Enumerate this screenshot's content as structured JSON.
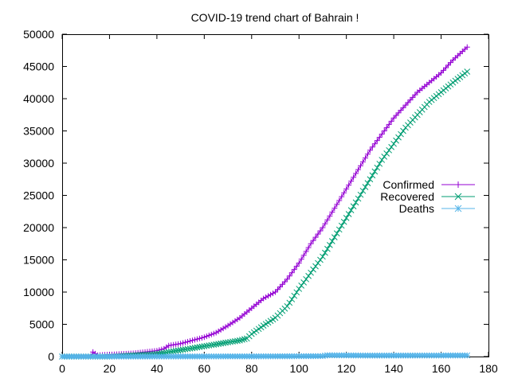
{
  "chart_data": {
    "type": "line",
    "title": "COVID-19 trend chart of Bahrain !",
    "xlabel": "",
    "ylabel": "",
    "xlim": [
      0,
      180
    ],
    "ylim": [
      0,
      50000
    ],
    "xticks": [
      0,
      20,
      40,
      60,
      80,
      100,
      120,
      140,
      160,
      180
    ],
    "yticks": [
      0,
      5000,
      10000,
      15000,
      20000,
      25000,
      30000,
      35000,
      40000,
      45000,
      50000
    ],
    "grid": false,
    "legend_position": "right",
    "x_start": 0,
    "x_end": 171,
    "series": [
      {
        "name": "Confirmed",
        "color": "#9400d3",
        "marker": "plus",
        "anchors": [
          [
            0,
            0
          ],
          [
            12,
            0
          ],
          [
            13,
            700
          ],
          [
            15,
            200
          ],
          [
            20,
            300
          ],
          [
            25,
            400
          ],
          [
            30,
            500
          ],
          [
            35,
            700
          ],
          [
            40,
            900
          ],
          [
            43,
            1200
          ],
          [
            45,
            1700
          ],
          [
            50,
            2000
          ],
          [
            55,
            2500
          ],
          [
            60,
            3000
          ],
          [
            65,
            3700
          ],
          [
            70,
            4800
          ],
          [
            75,
            6000
          ],
          [
            80,
            7500
          ],
          [
            85,
            9000
          ],
          [
            90,
            10000
          ],
          [
            95,
            12000
          ],
          [
            100,
            14500
          ],
          [
            105,
            17500
          ],
          [
            110,
            20000
          ],
          [
            115,
            23000
          ],
          [
            120,
            26000
          ],
          [
            125,
            29000
          ],
          [
            130,
            32000
          ],
          [
            135,
            34500
          ],
          [
            140,
            37000
          ],
          [
            145,
            39000
          ],
          [
            150,
            41000
          ],
          [
            155,
            42500
          ],
          [
            160,
            44000
          ],
          [
            165,
            46000
          ],
          [
            171,
            48000
          ]
        ]
      },
      {
        "name": "Recovered",
        "color": "#009e73",
        "marker": "cross",
        "anchors": [
          [
            0,
            0
          ],
          [
            20,
            0
          ],
          [
            30,
            200
          ],
          [
            40,
            400
          ],
          [
            45,
            700
          ],
          [
            50,
            1000
          ],
          [
            55,
            1300
          ],
          [
            60,
            1600
          ],
          [
            65,
            1900
          ],
          [
            70,
            2200
          ],
          [
            75,
            2500
          ],
          [
            78,
            2800
          ],
          [
            80,
            3500
          ],
          [
            85,
            4800
          ],
          [
            90,
            6000
          ],
          [
            95,
            7800
          ],
          [
            100,
            10500
          ],
          [
            105,
            13000
          ],
          [
            110,
            15500
          ],
          [
            115,
            18500
          ],
          [
            120,
            21500
          ],
          [
            125,
            24500
          ],
          [
            130,
            27500
          ],
          [
            135,
            30500
          ],
          [
            140,
            33000
          ],
          [
            145,
            35500
          ],
          [
            150,
            37500
          ],
          [
            155,
            39500
          ],
          [
            160,
            41000
          ],
          [
            165,
            42500
          ],
          [
            171,
            44200
          ]
        ]
      },
      {
        "name": "Deaths",
        "color": "#56b4e9",
        "marker": "star",
        "anchors": [
          [
            0,
            0
          ],
          [
            30,
            0
          ],
          [
            60,
            20
          ],
          [
            90,
            40
          ],
          [
            110,
            70
          ],
          [
            112,
            200
          ],
          [
            130,
            150
          ],
          [
            171,
            170
          ]
        ]
      }
    ]
  }
}
